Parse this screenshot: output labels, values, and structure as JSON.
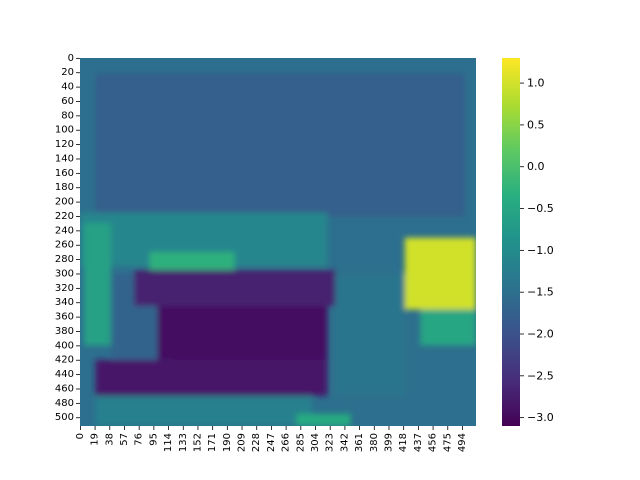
{
  "chart_data": {
    "type": "heatmap",
    "title": "",
    "xlabel": "",
    "ylabel": "",
    "x_tick_labels": [
      "0",
      "19",
      "38",
      "57",
      "76",
      "95",
      "114",
      "133",
      "152",
      "171",
      "190",
      "209",
      "228",
      "247",
      "266",
      "285",
      "304",
      "323",
      "342",
      "361",
      "380",
      "399",
      "418",
      "437",
      "456",
      "475",
      "494"
    ],
    "y_tick_labels": [
      "0",
      "20",
      "40",
      "60",
      "80",
      "100",
      "120",
      "140",
      "160",
      "180",
      "200",
      "220",
      "240",
      "260",
      "280",
      "300",
      "320",
      "340",
      "360",
      "380",
      "400",
      "420",
      "440",
      "460",
      "480",
      "500"
    ],
    "x_range": [
      0,
      512
    ],
    "y_range": [
      0,
      512
    ],
    "colormap": "viridis",
    "colorbar": {
      "range": [
        -3.1,
        1.3
      ],
      "tick_values": [
        1.0,
        0.5,
        0.0,
        -0.5,
        -1.0,
        -1.5,
        -2.0,
        -2.5,
        -3.0
      ],
      "tick_labels": [
        "1.0",
        "0.5",
        "0.0",
        "−0.5",
        "−1.0",
        "−1.5",
        "−2.0",
        "−2.5",
        "−3.0"
      ]
    },
    "regions": [
      {
        "x": [
          0,
          512
        ],
        "y": [
          0,
          512
        ],
        "value": -1.5
      },
      {
        "x": [
          20,
          497
        ],
        "y": [
          22,
          220
        ],
        "value": -1.8
      },
      {
        "x": [
          0,
          320
        ],
        "y": [
          215,
          290
        ],
        "value": -1.1
      },
      {
        "x": [
          5,
          40
        ],
        "y": [
          230,
          400
        ],
        "value": -0.6
      },
      {
        "x": [
          90,
          200
        ],
        "y": [
          270,
          300
        ],
        "value": -0.3
      },
      {
        "x": [
          40,
          120
        ],
        "y": [
          300,
          440
        ],
        "value": -1.7
      },
      {
        "x": [
          70,
          330
        ],
        "y": [
          295,
          345
        ],
        "value": -2.7
      },
      {
        "x": [
          100,
          320
        ],
        "y": [
          345,
          420
        ],
        "value": -2.9
      },
      {
        "x": [
          20,
          320
        ],
        "y": [
          420,
          470
        ],
        "value": -2.8
      },
      {
        "x": [
          330,
          420
        ],
        "y": [
          300,
          470
        ],
        "value": -1.4
      },
      {
        "x": [
          420,
          520
        ],
        "y": [
          250,
          350
        ],
        "value": 1.0
      },
      {
        "x": [
          440,
          512
        ],
        "y": [
          350,
          400
        ],
        "value": -0.5
      },
      {
        "x": [
          20,
          300
        ],
        "y": [
          470,
          512
        ],
        "value": -1.2
      },
      {
        "x": [
          280,
          350
        ],
        "y": [
          495,
          512
        ],
        "value": -0.4
      }
    ]
  }
}
